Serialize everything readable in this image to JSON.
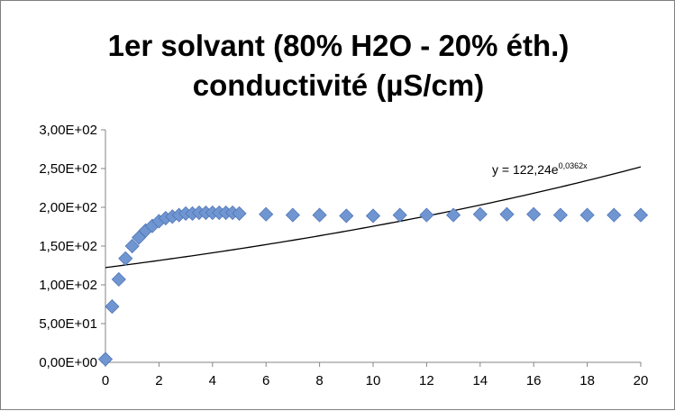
{
  "chart_data": {
    "type": "scatter",
    "title_lines": [
      "1er solvant (80% H2O - 20% éth.)",
      "conductivité (µS/cm)"
    ],
    "xlabel": "",
    "ylabel": "",
    "xlim": [
      0,
      20
    ],
    "ylim": [
      0,
      300
    ],
    "x_ticks": [
      "0",
      "2",
      "4",
      "6",
      "8",
      "10",
      "12",
      "14",
      "16",
      "18",
      "20"
    ],
    "y_ticks": [
      "0,00E+00",
      "5,00E+01",
      "1,00E+02",
      "1,50E+02",
      "2,00E+02",
      "2,50E+02",
      "3,00E+02"
    ],
    "grid": false,
    "marker_color": "#7096d1",
    "trendline": {
      "type": "exponential",
      "a": 122.24,
      "b": 0.0362,
      "label_base": "y = 122,24e",
      "label_exp": "0,0362x",
      "color": "#000000"
    },
    "points": [
      {
        "x": 0,
        "y": 4
      },
      {
        "x": 0.25,
        "y": 72
      },
      {
        "x": 0.5,
        "y": 107
      },
      {
        "x": 0.75,
        "y": 134
      },
      {
        "x": 1,
        "y": 150
      },
      {
        "x": 1.25,
        "y": 161
      },
      {
        "x": 1.5,
        "y": 170
      },
      {
        "x": 1.75,
        "y": 176
      },
      {
        "x": 2,
        "y": 182
      },
      {
        "x": 2.25,
        "y": 186
      },
      {
        "x": 2.5,
        "y": 188
      },
      {
        "x": 2.75,
        "y": 190
      },
      {
        "x": 3,
        "y": 192
      },
      {
        "x": 3.25,
        "y": 192
      },
      {
        "x": 3.5,
        "y": 193
      },
      {
        "x": 3.75,
        "y": 193
      },
      {
        "x": 4,
        "y": 193
      },
      {
        "x": 4.25,
        "y": 193
      },
      {
        "x": 4.5,
        "y": 193
      },
      {
        "x": 4.75,
        "y": 193
      },
      {
        "x": 5,
        "y": 192
      },
      {
        "x": 6,
        "y": 191
      },
      {
        "x": 7,
        "y": 190
      },
      {
        "x": 8,
        "y": 190
      },
      {
        "x": 9,
        "y": 189
      },
      {
        "x": 10,
        "y": 189
      },
      {
        "x": 11,
        "y": 190
      },
      {
        "x": 12,
        "y": 190
      },
      {
        "x": 13,
        "y": 190
      },
      {
        "x": 14,
        "y": 191
      },
      {
        "x": 15,
        "y": 191
      },
      {
        "x": 16,
        "y": 191
      },
      {
        "x": 17,
        "y": 190
      },
      {
        "x": 18,
        "y": 190
      },
      {
        "x": 19,
        "y": 190
      },
      {
        "x": 20,
        "y": 190
      }
    ]
  }
}
